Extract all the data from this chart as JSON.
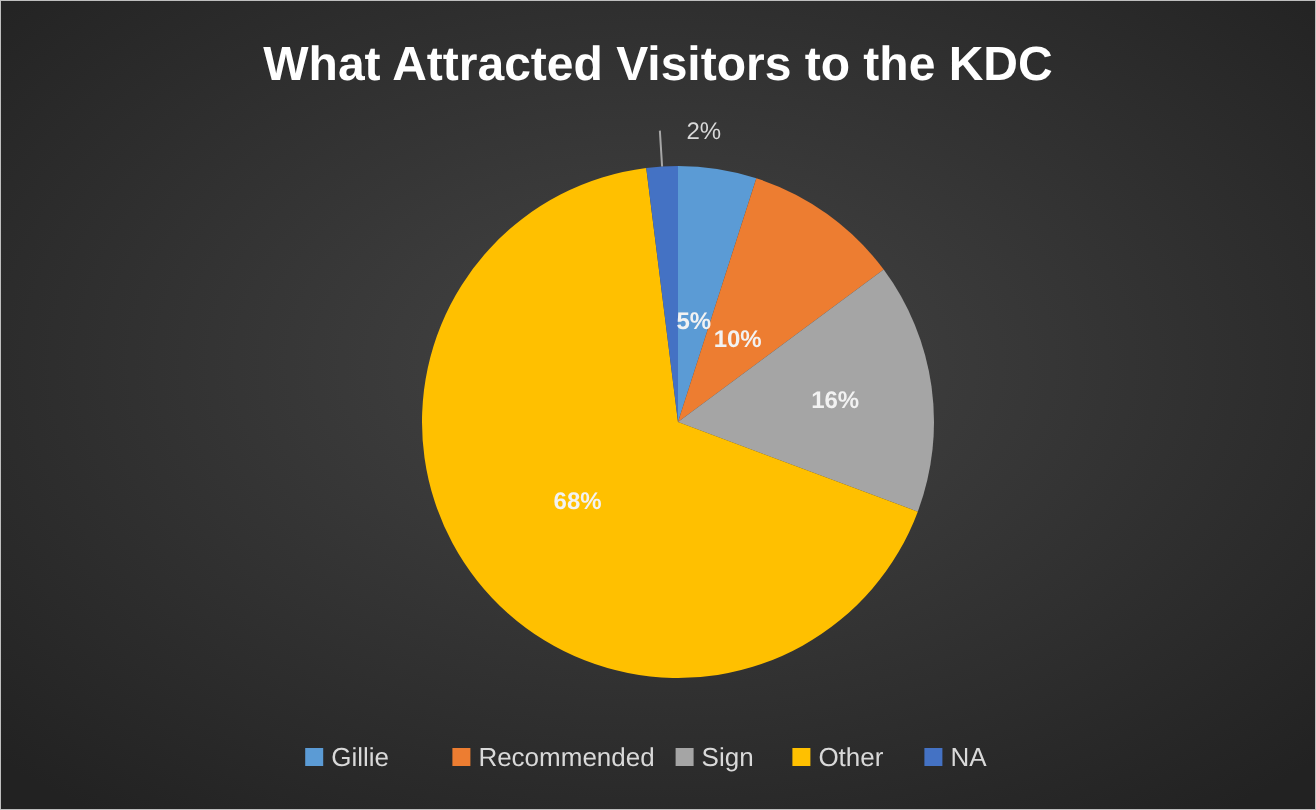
{
  "chart_data": {
    "type": "pie",
    "title": "What Attracted Visitors to the KDC",
    "categories": [
      "Gillie",
      "Recommended",
      "Sign",
      "Other",
      "NA"
    ],
    "values": [
      5,
      10,
      16,
      68,
      2
    ],
    "colors": [
      "#5b9bd5",
      "#ed7d31",
      "#a5a5a5",
      "#ffc000",
      "#4472c4"
    ],
    "value_labels": [
      "5%",
      "10%",
      "16%",
      "68%",
      "2%"
    ],
    "legend": "bottom"
  }
}
